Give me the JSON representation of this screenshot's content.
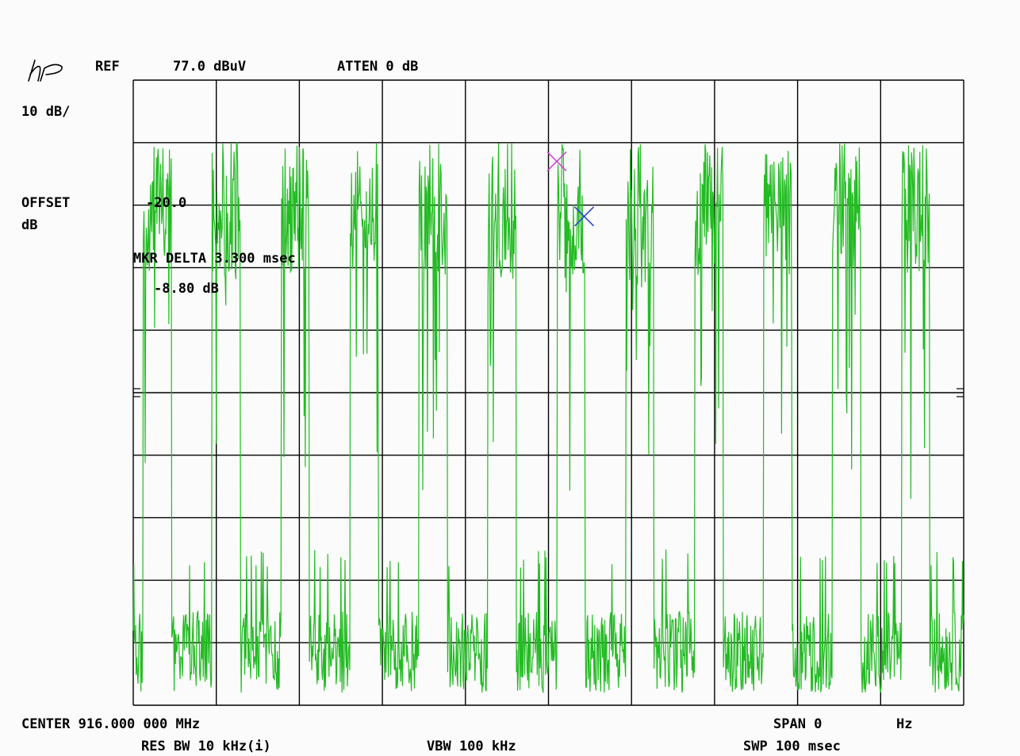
{
  "header": {
    "logo": "hp",
    "ref_label": "REF",
    "ref_value": "77.0 dBuV",
    "atten": "ATTEN 0 dB",
    "scale": "10 dB/",
    "offset_label": "OFFSET",
    "offset_unit": "dB"
  },
  "footer": {
    "center": "CENTER 916.000 000 MHz",
    "span": "SPAN 0",
    "span_unit": "Hz",
    "res_bw": "RES BW 10 kHz(i)",
    "vbw": "VBW 100 kHz",
    "sweep": "SWP 100 msec"
  },
  "colors": {
    "trace": "#22bb22",
    "marker_ref": "#d63fd6",
    "marker_delta": "#2a3fd6",
    "grid": "#000000"
  },
  "chart_data": {
    "type": "line",
    "title": "",
    "xlabel": "",
    "ylabel": "",
    "x_unit": "msec",
    "y_unit": "dBuV",
    "xlim": [
      0,
      100
    ],
    "ylim": [
      -23,
      77
    ],
    "divisions": {
      "x": 10,
      "y": 10
    },
    "grid": true,
    "legend": "none",
    "display_line_label": "-20.0",
    "marker_delta_text": "MKR DELTA 3.300 msec",
    "marker_delta_value_text": "-8.80 dB",
    "markers": [
      {
        "name": "reference-marker",
        "x": 51.0,
        "y": 64.0,
        "color": "#d63fd6"
      },
      {
        "name": "delta-marker",
        "x": 54.3,
        "y": 55.2,
        "color": "#2a3fd6"
      }
    ],
    "pulse_train": {
      "period_msec": 8.3,
      "on_duration_msec": 3.4,
      "first_on_msec": 1.2,
      "on_level_dBuV": [
        45,
        67
      ],
      "on_dropout_dBuV": [
        10,
        45
      ],
      "off_level_dBuV": [
        -21,
        -8
      ]
    }
  }
}
